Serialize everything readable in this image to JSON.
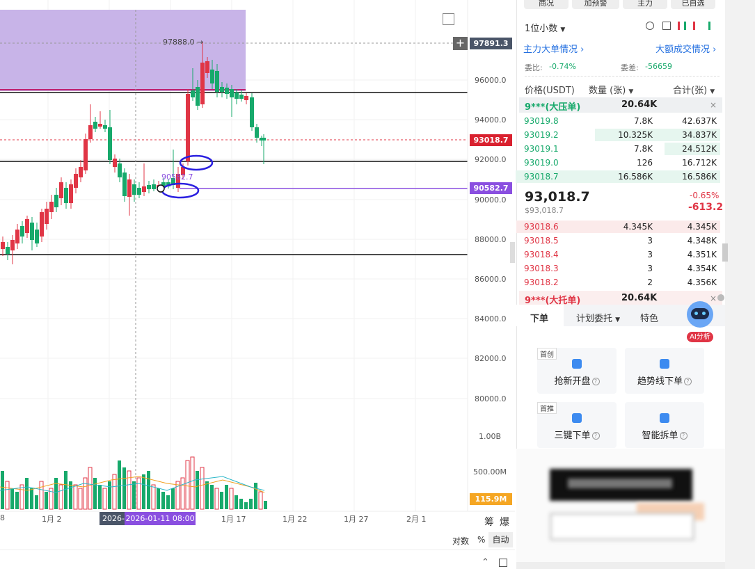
{
  "chart": {
    "y_ticks": [
      "96000.0",
      "94000.0",
      "92000.0",
      "90000.0",
      "88000.0",
      "86000.0",
      "84000.0",
      "82000.0",
      "80000.0"
    ],
    "vol_ticks": [
      "1.00B",
      "500.00M"
    ],
    "x_ticks": [
      "8",
      "1月 2",
      "2026-",
      "1月 17",
      "1月 22",
      "1月 27",
      "2月 1"
    ],
    "crosshair_date": "2026-01-11 08:00",
    "high_label": "97888.0 →",
    "crosshair_price": "97891.3",
    "last_price_tag": "93018.7",
    "level_price_tag": "90582.7",
    "level_label": "90582.7",
    "volume_tag": "115.9M",
    "bottom_buttons": {
      "chips": "筹",
      "burst": "爆",
      "log": "对数",
      "percent": "%",
      "auto": "自动"
    },
    "colors": {
      "up": "#17a96b",
      "down": "#e03545",
      "zone": "#c8b4e8",
      "level": "#8a4fe0",
      "marker": "#2a1fe0"
    }
  },
  "right_panel": {
    "top_tabs": [
      "商况",
      "加预警",
      "主力",
      "已自选"
    ],
    "precision_label": "1位小数",
    "main_orders_link": "主力大单情况",
    "big_trades_link": "大额成交情况",
    "ratio_label": "委比:",
    "ratio_value": "-0.74%",
    "diff_label": "委差:",
    "diff_value": "-56659",
    "columns": {
      "price": "价格(USDT)",
      "qty": "数量 (张)",
      "sum": "合计(张)"
    },
    "big_ask": {
      "label": "9***(大压单)",
      "value": "20.64K"
    },
    "asks": [
      {
        "price": "93019.8",
        "qty": "7.8K",
        "sum": "42.637K"
      },
      {
        "price": "93019.2",
        "qty": "10.325K",
        "sum": "34.837K"
      },
      {
        "price": "93019.1",
        "qty": "7.8K",
        "sum": "24.512K"
      },
      {
        "price": "93019.0",
        "qty": "126",
        "sum": "16.712K"
      },
      {
        "price": "93018.7",
        "qty": "16.586K",
        "sum": "16.586K"
      }
    ],
    "last_price": "93,018.7",
    "last_price_usd": "$93,018.7",
    "change_pct": "-0.65%",
    "change_abs": "-613.2",
    "bids": [
      {
        "price": "93018.6",
        "qty": "4.345K",
        "sum": "4.345K"
      },
      {
        "price": "93018.5",
        "qty": "3",
        "sum": "4.348K"
      },
      {
        "price": "93018.4",
        "qty": "3",
        "sum": "4.351K"
      },
      {
        "price": "93018.3",
        "qty": "3",
        "sum": "4.354K"
      },
      {
        "price": "93018.2",
        "qty": "2",
        "sum": "4.356K"
      }
    ],
    "big_bid": {
      "label": "9***(大托单)",
      "value": "20.64K"
    },
    "order_tabs": [
      "下单",
      "计划委托",
      "特色"
    ],
    "ai_label": "AI分析",
    "cards": [
      {
        "tag": "首创",
        "label": "抢新开盘"
      },
      {
        "tag": "",
        "label": "趋势线下单"
      },
      {
        "tag": "首推",
        "label": "三键下单"
      },
      {
        "tag": "",
        "label": "智能拆单"
      }
    ]
  }
}
